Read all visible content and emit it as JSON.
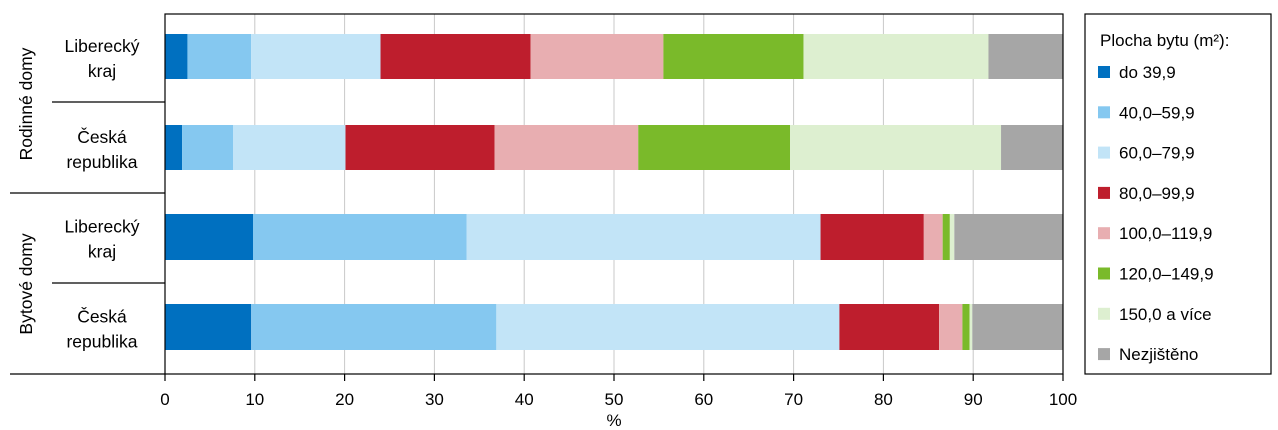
{
  "chart_data": {
    "type": "bar",
    "orientation": "horizontal",
    "stacked": true,
    "xlabel": "%",
    "xlim": [
      0,
      100
    ],
    "xticks": [
      "0",
      "10",
      "20",
      "30",
      "40",
      "50",
      "60",
      "70",
      "80",
      "90",
      "100"
    ],
    "grid": true,
    "legend_position": "right",
    "groups": [
      {
        "label": "Rodinné domy",
        "categories": [
          "Liberecký kraj",
          "Česká republika"
        ]
      },
      {
        "label": "Bytové domy",
        "categories": [
          "Liberecký kraj",
          "Česká republika"
        ]
      }
    ],
    "category_lines": [
      [
        "Liberecký",
        "kraj"
      ],
      [
        "Česká",
        "republika"
      ],
      [
        "Liberecký",
        "kraj"
      ],
      [
        "Česká",
        "republika"
      ]
    ],
    "legend_title": "Plocha bytu (m²):",
    "series": [
      {
        "name": "do 39,9",
        "color": "#0070c0",
        "values": [
          2.5,
          1.9,
          9.8,
          9.6
        ]
      },
      {
        "name": "40,0–59,9",
        "color": "#85c8f0",
        "values": [
          7.1,
          5.7,
          23.8,
          27.3
        ]
      },
      {
        "name": "60,0–79,9",
        "color": "#c2e4f7",
        "values": [
          14.4,
          12.5,
          39.4,
          38.2
        ]
      },
      {
        "name": "80,0–99,9",
        "color": "#be1e2d",
        "values": [
          16.7,
          16.6,
          11.5,
          11.1
        ]
      },
      {
        "name": "100,0–119,9",
        "color": "#e8aeb1",
        "values": [
          14.8,
          16.0,
          2.1,
          2.6
        ]
      },
      {
        "name": "120,0–149,9",
        "color": "#7aba2a",
        "values": [
          15.6,
          16.9,
          0.8,
          0.8
        ]
      },
      {
        "name": "150,0 a více",
        "color": "#ddefd0",
        "values": [
          20.6,
          23.5,
          0.5,
          0.3
        ]
      },
      {
        "name": "Nezjištěno",
        "color": "#a6a6a6",
        "values": [
          8.3,
          6.9,
          12.1,
          10.1
        ]
      }
    ]
  }
}
